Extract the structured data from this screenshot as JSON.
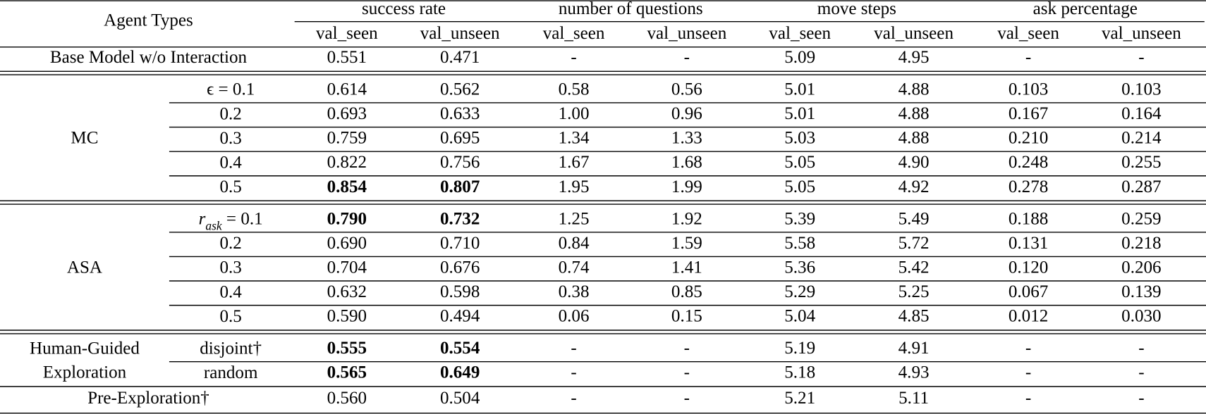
{
  "table": {
    "header": {
      "first": "Agent Types",
      "groups": [
        "success rate",
        "number of questions",
        "move steps",
        "ask percentage"
      ],
      "sub": [
        "val_seen",
        "val_unseen",
        "val_seen",
        "val_unseen",
        "val_seen",
        "val_unseen",
        "val_seen",
        "val_unseen"
      ]
    },
    "sections": [
      {
        "label": [
          "Base Model w/o Interaction"
        ],
        "rows": [
          {
            "cells": [
              "0.551",
              "0.471",
              "-",
              "-",
              "5.09",
              "4.95",
              "-",
              "-"
            ]
          }
        ]
      },
      {
        "label": [
          "MC"
        ],
        "rows": [
          {
            "param": [
              "ϵ = 0.1"
            ],
            "cells": [
              "0.614",
              "0.562",
              "0.58",
              "0.56",
              "5.01",
              "4.88",
              "0.103",
              "0.103"
            ]
          },
          {
            "param": [
              "0.2"
            ],
            "cells": [
              "0.693",
              "0.633",
              "1.00",
              "0.96",
              "5.01",
              "4.88",
              "0.167",
              "0.164"
            ]
          },
          {
            "param": [
              "0.3"
            ],
            "cells": [
              "0.759",
              "0.695",
              "1.34",
              "1.33",
              "5.03",
              "4.88",
              "0.210",
              "0.214"
            ]
          },
          {
            "param": [
              "0.4"
            ],
            "cells": [
              "0.822",
              "0.756",
              "1.67",
              "1.68",
              "5.05",
              "4.90",
              "0.248",
              "0.255"
            ]
          },
          {
            "param": [
              "0.5"
            ],
            "cells": [
              "0.854",
              "0.807",
              "1.95",
              "1.99",
              "5.05",
              "4.92",
              "0.278",
              "0.287"
            ],
            "bold": [
              0,
              1
            ]
          }
        ]
      },
      {
        "label": [
          "ASA"
        ],
        "rows": [
          {
            "param": [
              "r",
              "ask",
              " = 0.1"
            ],
            "cells": [
              "0.790",
              "0.732",
              "1.25",
              "1.92",
              "5.39",
              "5.49",
              "0.188",
              "0.259"
            ],
            "bold": [
              0,
              1
            ]
          },
          {
            "param": [
              "0.2"
            ],
            "cells": [
              "0.690",
              "0.710",
              "0.84",
              "1.59",
              "5.58",
              "5.72",
              "0.131",
              "0.218"
            ]
          },
          {
            "param": [
              "0.3"
            ],
            "cells": [
              "0.704",
              "0.676",
              "0.74",
              "1.41",
              "5.36",
              "5.42",
              "0.120",
              "0.206"
            ]
          },
          {
            "param": [
              "0.4"
            ],
            "cells": [
              "0.632",
              "0.598",
              "0.38",
              "0.85",
              "5.29",
              "5.25",
              "0.067",
              "0.139"
            ]
          },
          {
            "param": [
              "0.5"
            ],
            "cells": [
              "0.590",
              "0.494",
              "0.06",
              "0.15",
              "5.04",
              "4.85",
              "0.012",
              "0.030"
            ]
          }
        ]
      },
      {
        "label": [
          "Human-Guided",
          "Exploration"
        ],
        "rows": [
          {
            "param": [
              "disjoint†"
            ],
            "cells": [
              "0.555",
              "0.554",
              "-",
              "-",
              "5.19",
              "4.91",
              "-",
              "-"
            ],
            "bold": [
              0,
              1
            ]
          },
          {
            "param": [
              "random"
            ],
            "cells": [
              "0.565",
              "0.649",
              "-",
              "-",
              "5.18",
              "4.93",
              "-",
              "-"
            ],
            "bold": [
              0,
              1
            ]
          }
        ]
      },
      {
        "label": [
          "Pre-Exploration†"
        ],
        "rows": [
          {
            "cells": [
              "0.560",
              "0.504",
              "-",
              "-",
              "5.21",
              "5.11",
              "-",
              "-"
            ]
          }
        ]
      }
    ]
  }
}
